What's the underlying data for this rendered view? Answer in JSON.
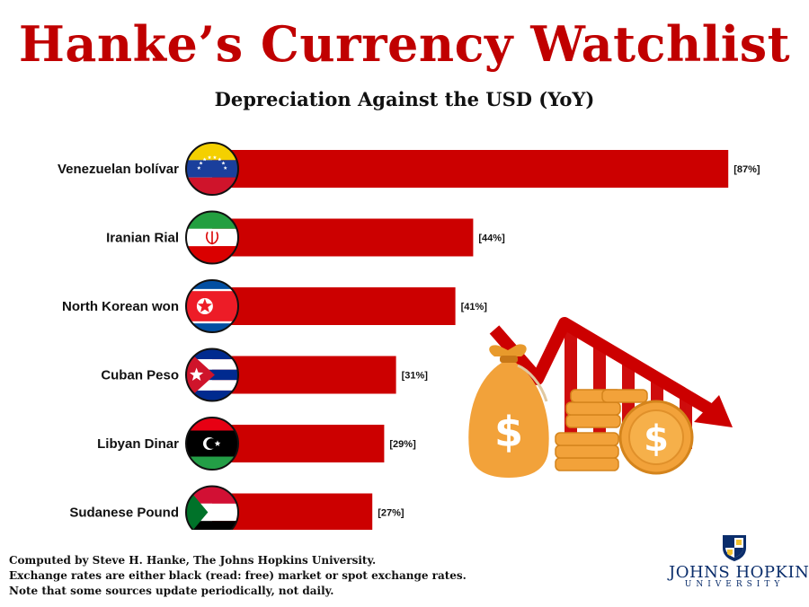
{
  "header": {
    "title": "Hanke’s Currency Watchlist",
    "subtitle": "Depreciation Against the USD (YoY)"
  },
  "chart_data": {
    "type": "bar",
    "orientation": "horizontal",
    "title": "Hanke’s Currency Watchlist",
    "subtitle": "Depreciation Against the USD (YoY)",
    "categories": [
      "Venezuelan bolívar",
      "Iranian Rial",
      "North Korean won",
      "Cuban Peso",
      "Libyan Dinar",
      "Sudanese Pound"
    ],
    "values": [
      87,
      44,
      41,
      31,
      29,
      27
    ],
    "value_labels": [
      "[87%]",
      "[44%]",
      "[41%]",
      "[31%]",
      "[29%]",
      "[27%]"
    ],
    "flags": [
      "venezuela-flag-icon",
      "iran-flag-icon",
      "north-korea-flag-icon",
      "cuba-flag-icon",
      "libya-flag-icon",
      "sudan-flag-icon"
    ],
    "bar_color": "#cc0000",
    "grid": false,
    "legend": "none"
  },
  "footer": {
    "lines": [
      "Computed by Steve H. Hanke, The Johns Hopkins University.",
      "Exchange rates are either black (read: free) market or spot exchange rates.",
      "Note that some sources update periodically, not daily."
    ]
  },
  "logo": {
    "name": "JOHNS HOPKINS",
    "sub": "UNIVERSITY",
    "icon": "jhu-shield-icon"
  },
  "illustration": {
    "icon": "money-bag-coins-falling-arrow-icon"
  },
  "colors": {
    "title": "#c00000",
    "bar": "#cc0000",
    "logo": "#0a2d6b",
    "money": "#f0a030"
  }
}
